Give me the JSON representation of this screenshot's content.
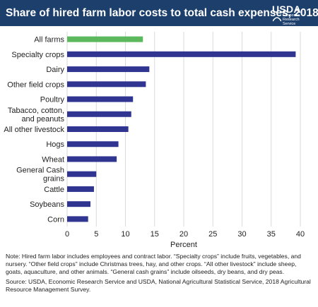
{
  "header": {
    "title": "Share of hired farm labor costs to total cash expenses, 2018",
    "logo_text": "USDA",
    "logo_sub_lines": [
      "Economic",
      "Research",
      "Service"
    ]
  },
  "colors": {
    "header_bg": "#1d3f6c",
    "bar_default": "#2f3590",
    "bar_highlight": "#5cb85c",
    "grid": "#d9d9d9"
  },
  "chart_data": {
    "type": "bar",
    "orientation": "horizontal",
    "title": "Share of hired farm labor costs to total cash expenses, 2018",
    "xlabel": "Percent",
    "xlim": [
      0,
      40
    ],
    "xticks": [
      0,
      5,
      10,
      15,
      20,
      25,
      30,
      35,
      40
    ],
    "grid": true,
    "categories": [
      [
        "All farms"
      ],
      [
        "Specialty crops"
      ],
      [
        "Dairy"
      ],
      [
        "Other field crops"
      ],
      [
        "Poultry"
      ],
      [
        "Tabacco, cotton,",
        "and peanuts"
      ],
      [
        "All other livestock"
      ],
      [
        "Hogs"
      ],
      [
        "Wheat"
      ],
      [
        "General Cash",
        "grains"
      ],
      [
        "Cattle"
      ],
      [
        "Soybeans"
      ],
      [
        "Corn"
      ]
    ],
    "values": [
      13.0,
      39.2,
      14.1,
      13.5,
      11.3,
      11.0,
      10.5,
      8.8,
      8.5,
      5.0,
      4.6,
      4.0,
      3.6
    ],
    "highlight_index": 0
  },
  "notes": {
    "note": "Note: Hired farm labor includes employees and contract labor. “Specialty crops” include fruits, vegetables, and nursery. “Other field crops” include Christmas trees, hay, and other crops. “All other livestock” include sheep, goats, aquaculture, and other animals. “General cash grains” include oilseeds, dry beans, and dry peas.",
    "source": "Source: USDA, Economic Research Service and USDA, National Agricultural Statistical Service, 2018 Agricultural Resource Management Survey."
  }
}
